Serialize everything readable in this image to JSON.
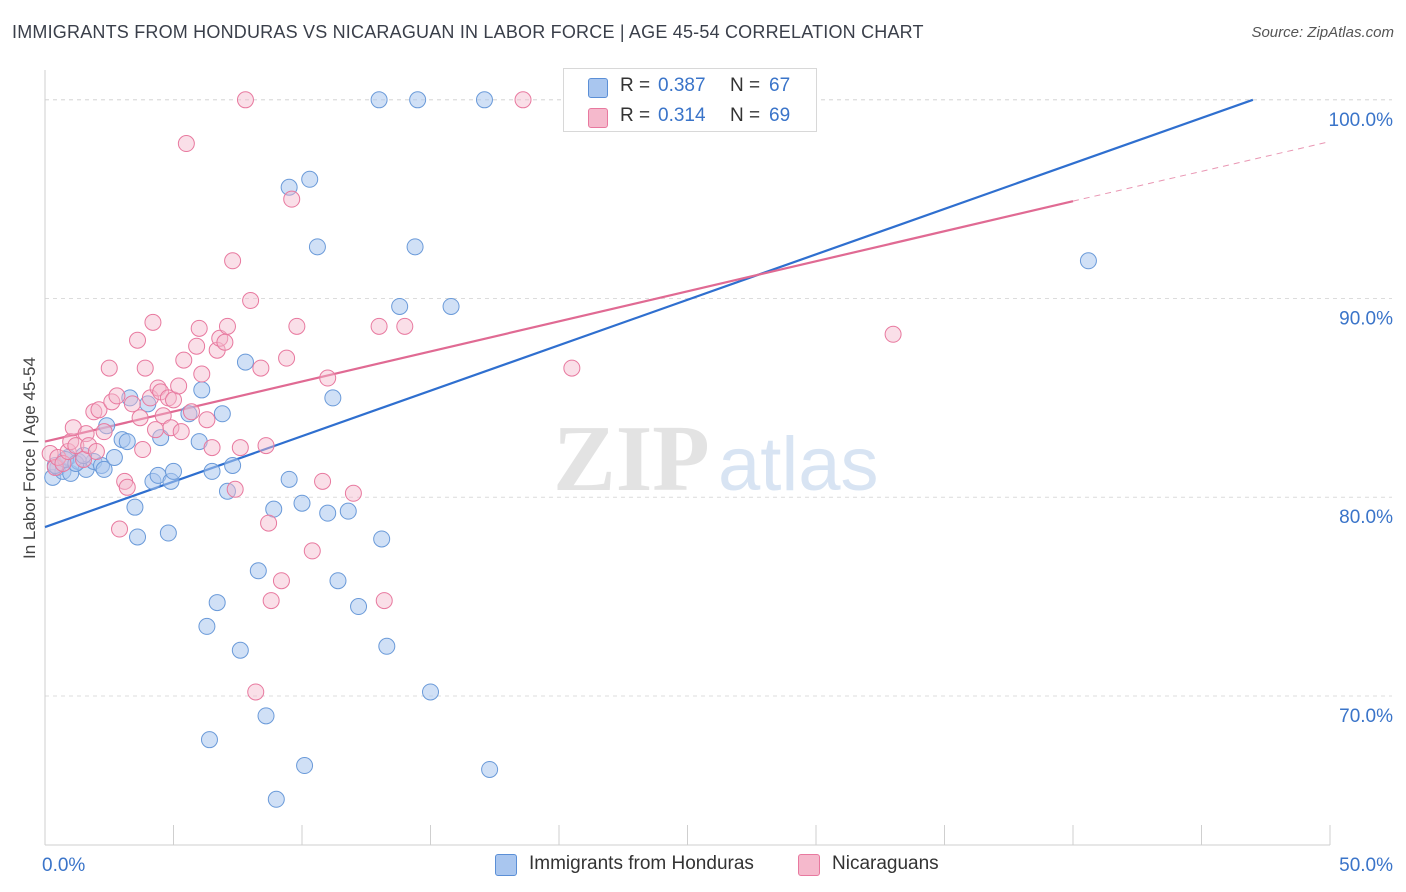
{
  "title": "IMMIGRANTS FROM HONDURAS VS NICARAGUAN IN LABOR FORCE | AGE 45-54 CORRELATION CHART",
  "source": "Source: ZipAtlas.com",
  "watermark": {
    "zip": "ZIP",
    "atlas": "atlas"
  },
  "colors": {
    "blue": "#5b8fd6",
    "blue_fill": "#a9c6ef",
    "pink": "#e8799f",
    "pink_fill": "#f5b9cc",
    "blue_line": "#2f6fcf",
    "pink_line": "#e06a93",
    "axis_text": "#3a74c9"
  },
  "legend_top": [
    {
      "r_label": "R =",
      "r_value": "0.387",
      "n_label": "N =",
      "n_value": "67"
    },
    {
      "r_label": "R =",
      "r_value": "0.314",
      "n_label": "N =",
      "n_value": "69"
    }
  ],
  "chart_data": {
    "type": "scatter",
    "title": "IMMIGRANTS FROM HONDURAS VS NICARAGUAN IN LABOR FORCE | AGE 45-54 CORRELATION CHART",
    "xlabel": "",
    "ylabel": "In Labor Force | Age 45-54",
    "xlim": [
      0,
      50
    ],
    "ylim": [
      62.5,
      101.5
    ],
    "x_tick_labels": [
      "0.0%",
      "50.0%"
    ],
    "y_ticks": [
      70,
      80,
      90,
      100
    ],
    "y_tick_labels": [
      "70.0%",
      "80.0%",
      "90.0%",
      "100.0%"
    ],
    "grid": true,
    "legend_position": "top-center",
    "series": [
      {
        "name": "Immigrants from Honduras",
        "r": 0.387,
        "n": 67,
        "trend": {
          "x": [
            0,
            47
          ],
          "y": [
            78.5,
            100.0
          ]
        },
        "points": [
          [
            0.3,
            81.0
          ],
          [
            0.5,
            81.5
          ],
          [
            0.7,
            81.3
          ],
          [
            0.9,
            82.0
          ],
          [
            1.0,
            81.2
          ],
          [
            1.3,
            81.8
          ],
          [
            1.6,
            81.4
          ],
          [
            1.9,
            81.8
          ],
          [
            2.2,
            81.6
          ],
          [
            2.3,
            81.4
          ],
          [
            2.4,
            83.6
          ],
          [
            2.7,
            82.0
          ],
          [
            3.0,
            82.9
          ],
          [
            3.2,
            82.8
          ],
          [
            3.3,
            85.0
          ],
          [
            3.5,
            79.5
          ],
          [
            3.6,
            78.0
          ],
          [
            4.0,
            84.7
          ],
          [
            4.2,
            80.8
          ],
          [
            4.4,
            81.1
          ],
          [
            4.5,
            83.0
          ],
          [
            4.8,
            78.2
          ],
          [
            4.9,
            80.8
          ],
          [
            5.0,
            81.3
          ],
          [
            5.6,
            84.2
          ],
          [
            6.0,
            82.8
          ],
          [
            6.3,
            73.5
          ],
          [
            6.4,
            67.8
          ],
          [
            6.5,
            81.3
          ],
          [
            6.7,
            74.7
          ],
          [
            6.9,
            84.2
          ],
          [
            7.1,
            80.3
          ],
          [
            7.3,
            81.6
          ],
          [
            7.6,
            72.3
          ],
          [
            7.8,
            86.8
          ],
          [
            8.3,
            76.3
          ],
          [
            8.6,
            69.0
          ],
          [
            8.9,
            79.4
          ],
          [
            9.0,
            64.8
          ],
          [
            9.5,
            95.6
          ],
          [
            9.5,
            80.9
          ],
          [
            10.0,
            79.7
          ],
          [
            10.1,
            66.5
          ],
          [
            10.3,
            96.0
          ],
          [
            10.6,
            92.6
          ],
          [
            11.0,
            79.2
          ],
          [
            11.2,
            85.0
          ],
          [
            11.4,
            75.8
          ],
          [
            11.8,
            79.3
          ],
          [
            12.2,
            74.5
          ],
          [
            13.0,
            100.0
          ],
          [
            13.1,
            77.9
          ],
          [
            13.3,
            72.5
          ],
          [
            13.8,
            89.6
          ],
          [
            14.4,
            92.6
          ],
          [
            14.5,
            100.0
          ],
          [
            15.0,
            70.2
          ],
          [
            15.8,
            89.6
          ],
          [
            17.1,
            100.0
          ],
          [
            17.3,
            66.3
          ],
          [
            24.2,
            100.0
          ],
          [
            40.6,
            91.9
          ],
          [
            0.4,
            81.6
          ],
          [
            0.8,
            81.9
          ],
          [
            1.2,
            81.7
          ],
          [
            1.5,
            82.1
          ],
          [
            6.1,
            85.4
          ]
        ]
      },
      {
        "name": "Nicaraguans",
        "r": 0.314,
        "n": 69,
        "trend": {
          "x": [
            0,
            40
          ],
          "y": [
            82.8,
            94.9
          ]
        },
        "trend_dashed": {
          "x": [
            40,
            50
          ],
          "y": [
            94.9,
            97.9
          ]
        },
        "points": [
          [
            0.2,
            82.2
          ],
          [
            0.4,
            81.5
          ],
          [
            0.5,
            82.0
          ],
          [
            0.7,
            81.7
          ],
          [
            0.9,
            82.3
          ],
          [
            1.0,
            82.8
          ],
          [
            1.1,
            83.5
          ],
          [
            1.2,
            82.6
          ],
          [
            1.5,
            81.9
          ],
          [
            1.6,
            83.2
          ],
          [
            1.7,
            82.6
          ],
          [
            1.9,
            84.3
          ],
          [
            2.0,
            82.3
          ],
          [
            2.1,
            84.4
          ],
          [
            2.3,
            83.3
          ],
          [
            2.5,
            86.5
          ],
          [
            2.6,
            84.8
          ],
          [
            2.8,
            85.1
          ],
          [
            2.9,
            78.4
          ],
          [
            3.1,
            80.8
          ],
          [
            3.2,
            80.5
          ],
          [
            3.4,
            84.7
          ],
          [
            3.6,
            87.9
          ],
          [
            3.7,
            84.0
          ],
          [
            3.8,
            82.4
          ],
          [
            3.9,
            86.5
          ],
          [
            4.1,
            85.0
          ],
          [
            4.2,
            88.8
          ],
          [
            4.3,
            83.4
          ],
          [
            4.4,
            85.5
          ],
          [
            4.5,
            85.3
          ],
          [
            4.6,
            84.1
          ],
          [
            4.8,
            85.0
          ],
          [
            4.9,
            83.5
          ],
          [
            5.0,
            84.9
          ],
          [
            5.2,
            85.6
          ],
          [
            5.3,
            83.3
          ],
          [
            5.4,
            86.9
          ],
          [
            5.5,
            97.8
          ],
          [
            5.7,
            84.3
          ],
          [
            5.9,
            87.6
          ],
          [
            6.0,
            88.5
          ],
          [
            6.1,
            86.2
          ],
          [
            6.3,
            83.9
          ],
          [
            6.5,
            82.5
          ],
          [
            6.7,
            87.4
          ],
          [
            6.8,
            88.0
          ],
          [
            7.0,
            87.8
          ],
          [
            7.1,
            88.6
          ],
          [
            7.3,
            91.9
          ],
          [
            7.4,
            80.4
          ],
          [
            7.6,
            82.5
          ],
          [
            7.8,
            100.0
          ],
          [
            8.0,
            89.9
          ],
          [
            8.2,
            70.2
          ],
          [
            8.4,
            86.5
          ],
          [
            8.6,
            82.6
          ],
          [
            8.7,
            78.7
          ],
          [
            8.8,
            74.8
          ],
          [
            9.2,
            75.8
          ],
          [
            9.4,
            87.0
          ],
          [
            9.6,
            95.0
          ],
          [
            9.8,
            88.6
          ],
          [
            10.4,
            77.3
          ],
          [
            10.8,
            80.8
          ],
          [
            11.0,
            86.0
          ],
          [
            12.0,
            80.2
          ],
          [
            13.0,
            88.6
          ],
          [
            13.2,
            74.8
          ]
        ],
        "extra_points": [
          [
            14.0,
            88.6
          ],
          [
            18.6,
            100.0
          ],
          [
            20.5,
            86.5
          ],
          [
            23.8,
            100.0
          ],
          [
            33.0,
            88.2
          ]
        ]
      }
    ]
  },
  "legend_bottom": [
    {
      "label": "Immigrants from Honduras"
    },
    {
      "label": "Nicaraguans"
    }
  ]
}
